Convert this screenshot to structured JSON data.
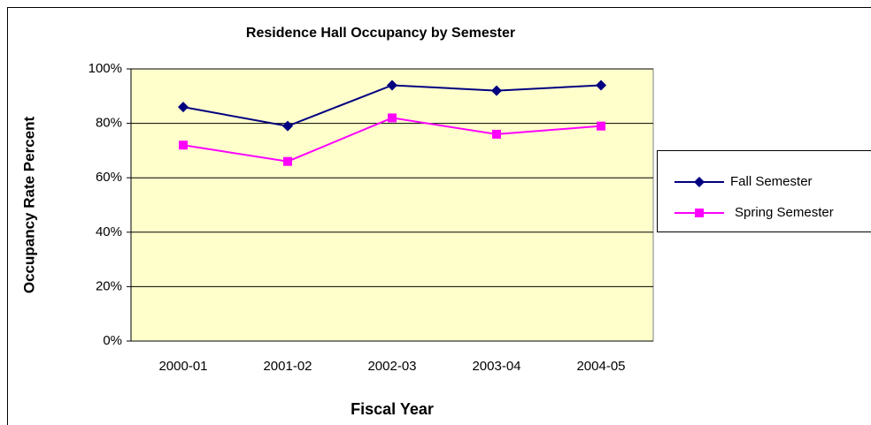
{
  "chart_data": {
    "type": "line",
    "title": "Residence Hall Occupancy by Semester",
    "xlabel": "Fiscal Year",
    "ylabel": "Occupancy Rate Percent",
    "categories": [
      "2000-01",
      "2001-02",
      "2002-03",
      "2003-04",
      "2004-05"
    ],
    "series": [
      {
        "name": "Fall Semester",
        "color": "#000080",
        "marker": "diamond",
        "values": [
          86,
          79,
          94,
          92,
          94
        ]
      },
      {
        "name": "Spring Semester",
        "color": "#FF00FF",
        "marker": "square",
        "values": [
          72,
          66,
          82,
          76,
          79
        ]
      }
    ],
    "ylim": [
      0,
      100
    ],
    "yticks": [
      {
        "value": 0,
        "label": "0%"
      },
      {
        "value": 20,
        "label": "20%"
      },
      {
        "value": 40,
        "label": "40%"
      },
      {
        "value": 60,
        "label": "60%"
      },
      {
        "value": 80,
        "label": "80%"
      },
      {
        "value": 100,
        "label": "100%"
      }
    ],
    "grid": true,
    "legend": "right",
    "plot_background": "#FFFFCC"
  }
}
